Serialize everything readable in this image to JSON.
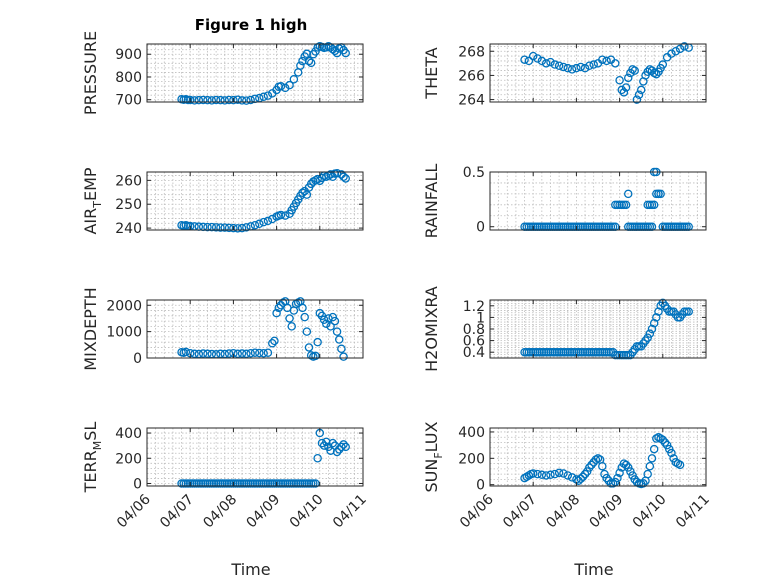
{
  "figure": {
    "title": "Figure 1 high"
  },
  "colors": {
    "marker": "#0072bd",
    "axis": "#262626",
    "grid": "#bdbdbd"
  },
  "chart_data": [
    {
      "type": "scatter",
      "ylabel": "PRESSURE",
      "ylim": [
        690,
        945
      ],
      "yticks": [
        "700",
        "800",
        "900"
      ],
      "ytick_values": [
        700,
        800,
        900
      ],
      "x": [
        0.8,
        0.85,
        0.9,
        0.95,
        1.0,
        1.1,
        1.2,
        1.3,
        1.4,
        1.5,
        1.6,
        1.7,
        1.8,
        1.9,
        2.0,
        2.1,
        2.2,
        2.3,
        2.4,
        2.5,
        2.6,
        2.7,
        2.8,
        2.9,
        3.0,
        3.05,
        3.1,
        3.2,
        3.3,
        3.4,
        3.5,
        3.55,
        3.6,
        3.65,
        3.7,
        3.75,
        3.8,
        3.85,
        3.9,
        3.95,
        4.0,
        4.05,
        4.1,
        4.15,
        4.2,
        4.25,
        4.3,
        4.35,
        4.4,
        4.45,
        4.5,
        4.55,
        4.6
      ],
      "y": [
        702,
        700,
        702,
        699,
        699,
        697,
        698,
        699,
        698,
        697,
        699,
        698,
        697,
        699,
        698,
        700,
        697,
        696,
        699,
        704,
        707,
        713,
        718,
        728,
        743,
        757,
        759,
        752,
        764,
        790,
        820,
        850,
        870,
        890,
        902,
        870,
        862,
        900,
        912,
        930,
        935,
        932,
        928,
        930,
        935,
        930,
        922,
        915,
        905,
        925,
        930,
        918,
        905
      ]
    },
    {
      "type": "scatter",
      "ylabel": "THETA",
      "ylim": [
        263.8,
        268.6
      ],
      "yticks": [
        "264",
        "266",
        "268"
      ],
      "ytick_values": [
        264,
        266,
        268
      ],
      "x": [
        0.8,
        0.9,
        1.0,
        1.1,
        1.2,
        1.3,
        1.4,
        1.5,
        1.6,
        1.7,
        1.8,
        1.9,
        2.0,
        2.1,
        2.2,
        2.3,
        2.4,
        2.5,
        2.6,
        2.7,
        2.8,
        2.9,
        3.0,
        3.05,
        3.1,
        3.15,
        3.2,
        3.25,
        3.3,
        3.35,
        3.4,
        3.45,
        3.5,
        3.55,
        3.6,
        3.65,
        3.7,
        3.75,
        3.8,
        3.85,
        3.9,
        3.95,
        4.0,
        4.1,
        4.2,
        4.3,
        4.4,
        4.5,
        4.6
      ],
      "y": [
        267.3,
        267.2,
        267.6,
        267.4,
        267.2,
        267.0,
        267.1,
        266.9,
        266.8,
        266.7,
        266.6,
        266.5,
        266.6,
        266.7,
        266.6,
        266.8,
        266.9,
        267.0,
        267.3,
        267.2,
        267.3,
        267.0,
        265.6,
        264.8,
        264.6,
        265.0,
        265.8,
        266.2,
        266.5,
        266.4,
        264.0,
        264.4,
        264.8,
        265.5,
        266.0,
        266.3,
        266.5,
        266.4,
        266.2,
        266.1,
        266.3,
        266.6,
        266.9,
        267.5,
        267.8,
        268.0,
        268.2,
        268.4,
        268.3
      ]
    },
    {
      "type": "scatter",
      "ylabel": "AIR_TEMP",
      "ylim": [
        239.2,
        263.5
      ],
      "yticks": [
        "240",
        "250",
        "260"
      ],
      "ytick_values": [
        240,
        250,
        260
      ],
      "x": [
        0.8,
        0.85,
        0.9,
        0.95,
        1.0,
        1.1,
        1.2,
        1.3,
        1.4,
        1.5,
        1.6,
        1.7,
        1.8,
        1.9,
        2.0,
        2.1,
        2.2,
        2.3,
        2.4,
        2.5,
        2.6,
        2.7,
        2.8,
        2.9,
        3.0,
        3.05,
        3.1,
        3.2,
        3.3,
        3.35,
        3.4,
        3.45,
        3.5,
        3.55,
        3.6,
        3.65,
        3.7,
        3.75,
        3.8,
        3.85,
        3.9,
        3.95,
        4.0,
        4.05,
        4.1,
        4.15,
        4.2,
        4.25,
        4.3,
        4.35,
        4.4,
        4.5,
        4.55,
        4.6
      ],
      "y": [
        241.2,
        241.0,
        241.2,
        240.9,
        240.8,
        240.7,
        240.6,
        240.5,
        240.4,
        240.4,
        240.3,
        240.2,
        240.2,
        240.1,
        240.0,
        239.9,
        240.0,
        240.3,
        240.7,
        241.2,
        241.8,
        242.5,
        243.0,
        243.8,
        244.8,
        245.2,
        245.5,
        245.2,
        246.0,
        247.5,
        249.0,
        250.5,
        252.0,
        253.5,
        254.8,
        255.5,
        254.0,
        257.0,
        258.5,
        259.5,
        260.0,
        260.5,
        259.8,
        261.0,
        262.0,
        261.5,
        262.0,
        262.5,
        261.5,
        262.8,
        263.0,
        262.5,
        261.5,
        260.8
      ]
    },
    {
      "type": "scatter",
      "ylabel": "RAINFALL",
      "ylim": [
        -0.03,
        0.5
      ],
      "yticks": [
        "0",
        "0.5"
      ],
      "ytick_values": [
        0,
        0.5
      ],
      "x": [
        0.8,
        0.85,
        0.9,
        0.95,
        1.0,
        1.05,
        1.1,
        1.15,
        1.2,
        1.25,
        1.3,
        1.35,
        1.4,
        1.45,
        1.5,
        1.55,
        1.6,
        1.65,
        1.7,
        1.75,
        1.8,
        1.85,
        1.9,
        1.95,
        2.0,
        2.05,
        2.1,
        2.15,
        2.2,
        2.25,
        2.3,
        2.35,
        2.4,
        2.45,
        2.5,
        2.55,
        2.6,
        2.65,
        2.7,
        2.75,
        2.8,
        2.85,
        2.9,
        3.2,
        3.25,
        3.3,
        3.35,
        3.4,
        3.45,
        3.5,
        3.55,
        3.6,
        3.65,
        3.7,
        3.75,
        4.0,
        4.05,
        4.1,
        4.15,
        4.2,
        4.25,
        4.3,
        4.35,
        4.4,
        4.45,
        4.5,
        4.55,
        4.6,
        2.9,
        2.95,
        3.0,
        3.05,
        3.1,
        3.15,
        3.2,
        3.65,
        3.7,
        3.75,
        3.8,
        3.85,
        3.9,
        3.95,
        3.8,
        3.85,
        3.9
      ],
      "y": [
        0,
        0,
        0,
        0,
        0,
        0,
        0,
        0,
        0,
        0,
        0,
        0,
        0,
        0,
        0,
        0,
        0,
        0,
        0,
        0,
        0,
        0,
        0,
        0,
        0,
        0,
        0,
        0,
        0,
        0,
        0,
        0,
        0,
        0,
        0,
        0,
        0,
        0,
        0,
        0,
        0,
        0,
        0,
        0,
        0,
        0,
        0,
        0,
        0,
        0,
        0,
        0,
        0,
        0,
        0,
        0,
        0,
        0,
        0,
        0,
        0,
        0,
        0,
        0,
        0,
        0,
        0,
        0,
        0.2,
        0.2,
        0.2,
        0.2,
        0.2,
        0.2,
        0.3,
        0.2,
        0.2,
        0.2,
        0.2,
        0.3,
        0.3,
        0.3,
        0.5,
        0.5,
        0.3
      ]
    },
    {
      "type": "scatter",
      "ylabel": "MIXDEPTH",
      "ylim": [
        0,
        2200
      ],
      "yticks": [
        "0",
        "1000",
        "2000"
      ],
      "ytick_values": [
        0,
        1000,
        2000
      ],
      "x": [
        0.8,
        0.85,
        0.9,
        1.0,
        1.1,
        1.2,
        1.3,
        1.4,
        1.5,
        1.6,
        1.7,
        1.8,
        1.9,
        2.0,
        2.1,
        2.2,
        2.3,
        2.4,
        2.5,
        2.6,
        2.7,
        2.8,
        2.9,
        2.95,
        3.0,
        3.05,
        3.1,
        3.15,
        3.2,
        3.25,
        3.3,
        3.35,
        3.4,
        3.45,
        3.5,
        3.55,
        3.6,
        3.65,
        3.7,
        3.75,
        3.8,
        3.85,
        3.9,
        3.95,
        4.0,
        4.05,
        4.1,
        4.15,
        4.2,
        4.25,
        4.3,
        4.35,
        4.4,
        4.45,
        4.5,
        4.55
      ],
      "y": [
        220,
        200,
        230,
        180,
        160,
        150,
        170,
        160,
        150,
        140,
        160,
        150,
        170,
        180,
        160,
        170,
        160,
        180,
        200,
        190,
        180,
        200,
        560,
        650,
        1700,
        1900,
        2000,
        2100,
        2150,
        1900,
        1500,
        1200,
        1800,
        2050,
        2100,
        2150,
        1900,
        1550,
        1000,
        400,
        100,
        50,
        80,
        600,
        1700,
        1600,
        1450,
        1300,
        1500,
        1200,
        1550,
        1400,
        1000,
        700,
        350,
        50
      ]
    },
    {
      "type": "scatter",
      "ylabel": "H2OMIXRA",
      "ylim": [
        0.3,
        1.3
      ],
      "yticks": [
        "0.4",
        "0.6",
        "0.8",
        "1",
        "1.2"
      ],
      "ytick_values": [
        0.4,
        0.6,
        0.8,
        1.0,
        1.2
      ],
      "x": [
        0.8,
        0.85,
        0.9,
        0.95,
        1.0,
        1.05,
        1.1,
        1.15,
        1.2,
        1.25,
        1.3,
        1.35,
        1.4,
        1.45,
        1.5,
        1.55,
        1.6,
        1.65,
        1.7,
        1.75,
        1.8,
        1.85,
        1.9,
        1.95,
        2.0,
        2.05,
        2.1,
        2.15,
        2.2,
        2.25,
        2.3,
        2.35,
        2.4,
        2.45,
        2.5,
        2.55,
        2.6,
        2.65,
        2.7,
        2.75,
        2.8,
        2.85,
        2.9,
        2.95,
        3.0,
        3.05,
        3.1,
        3.15,
        3.2,
        3.25,
        3.3,
        3.35,
        3.4,
        3.45,
        3.5,
        3.55,
        3.6,
        3.65,
        3.7,
        3.75,
        3.8,
        3.85,
        3.9,
        3.95,
        4.0,
        4.05,
        4.1,
        4.15,
        4.2,
        4.25,
        4.3,
        4.35,
        4.4,
        4.45,
        4.5,
        4.55,
        4.6
      ],
      "y": [
        0.4,
        0.4,
        0.4,
        0.4,
        0.4,
        0.4,
        0.4,
        0.4,
        0.4,
        0.4,
        0.4,
        0.4,
        0.4,
        0.4,
        0.4,
        0.4,
        0.4,
        0.4,
        0.4,
        0.4,
        0.4,
        0.4,
        0.4,
        0.4,
        0.4,
        0.4,
        0.4,
        0.4,
        0.4,
        0.4,
        0.4,
        0.4,
        0.4,
        0.4,
        0.4,
        0.4,
        0.4,
        0.4,
        0.4,
        0.4,
        0.4,
        0.4,
        0.35,
        0.35,
        0.35,
        0.35,
        0.35,
        0.35,
        0.35,
        0.35,
        0.4,
        0.45,
        0.5,
        0.5,
        0.5,
        0.55,
        0.6,
        0.65,
        0.72,
        0.8,
        0.9,
        1.0,
        1.1,
        1.2,
        1.25,
        1.2,
        1.15,
        1.1,
        1.1,
        1.1,
        1.05,
        1.0,
        1.0,
        1.05,
        1.1,
        1.1,
        1.1
      ]
    },
    {
      "type": "scatter",
      "ylabel": "TERR_MSL",
      "ylim": [
        -20,
        440
      ],
      "yticks": [
        "0",
        "200",
        "400"
      ],
      "ytick_values": [
        0,
        200,
        400
      ],
      "x": [
        0.8,
        0.85,
        0.9,
        0.95,
        1.0,
        1.05,
        1.1,
        1.15,
        1.2,
        1.25,
        1.3,
        1.35,
        1.4,
        1.45,
        1.5,
        1.55,
        1.6,
        1.65,
        1.7,
        1.75,
        1.8,
        1.85,
        1.9,
        1.95,
        2.0,
        2.05,
        2.1,
        2.15,
        2.2,
        2.25,
        2.3,
        2.35,
        2.4,
        2.45,
        2.5,
        2.55,
        2.6,
        2.65,
        2.7,
        2.75,
        2.8,
        2.85,
        2.9,
        2.95,
        3.0,
        3.05,
        3.1,
        3.15,
        3.2,
        3.25,
        3.3,
        3.35,
        3.4,
        3.45,
        3.5,
        3.55,
        3.6,
        3.65,
        3.7,
        3.75,
        3.8,
        3.85,
        3.9,
        3.95,
        4.0,
        4.05,
        4.1,
        4.15,
        4.2,
        4.25,
        4.3,
        4.35,
        4.4,
        4.45,
        4.5,
        4.55,
        4.6
      ],
      "y": [
        0,
        0,
        0,
        0,
        0,
        0,
        0,
        0,
        0,
        0,
        0,
        0,
        0,
        0,
        0,
        0,
        0,
        0,
        0,
        0,
        0,
        0,
        0,
        0,
        0,
        0,
        0,
        0,
        0,
        0,
        0,
        0,
        0,
        0,
        0,
        0,
        0,
        0,
        0,
        0,
        0,
        0,
        0,
        0,
        0,
        0,
        0,
        0,
        0,
        0,
        0,
        0,
        0,
        0,
        0,
        0,
        0,
        0,
        0,
        0,
        0,
        0,
        0,
        200,
        400,
        320,
        300,
        330,
        290,
        260,
        320,
        300,
        250,
        270,
        290,
        310,
        290
      ]
    },
    {
      "type": "scatter",
      "ylabel": "SUN_FLUX",
      "ylim": [
        -10,
        430
      ],
      "yticks": [
        "0",
        "200",
        "400"
      ],
      "ytick_values": [
        0,
        200,
        400
      ],
      "x": [
        0.8,
        0.85,
        0.9,
        0.95,
        1.0,
        1.1,
        1.2,
        1.3,
        1.4,
        1.5,
        1.6,
        1.7,
        1.8,
        1.9,
        2.0,
        2.05,
        2.1,
        2.15,
        2.2,
        2.25,
        2.3,
        2.35,
        2.4,
        2.45,
        2.5,
        2.55,
        2.6,
        2.65,
        2.7,
        2.75,
        2.8,
        2.85,
        2.9,
        2.95,
        3.0,
        3.05,
        3.1,
        3.15,
        3.2,
        3.25,
        3.3,
        3.35,
        3.4,
        3.45,
        3.5,
        3.55,
        3.6,
        3.65,
        3.7,
        3.75,
        3.8,
        3.85,
        3.9,
        3.95,
        4.0,
        4.05,
        4.1,
        4.15,
        4.2,
        4.25,
        4.3,
        4.35,
        4.4
      ],
      "y": [
        50,
        60,
        70,
        80,
        85,
        80,
        75,
        70,
        75,
        80,
        90,
        85,
        70,
        55,
        40,
        30,
        45,
        60,
        80,
        100,
        130,
        150,
        170,
        190,
        200,
        190,
        140,
        80,
        50,
        30,
        10,
        10,
        20,
        50,
        90,
        130,
        160,
        150,
        130,
        100,
        70,
        40,
        20,
        10,
        5,
        10,
        30,
        80,
        140,
        200,
        270,
        350,
        360,
        350,
        340,
        320,
        300,
        270,
        240,
        200,
        170,
        160,
        150
      ]
    }
  ],
  "x_axis": {
    "xlim": [
      0,
      5
    ],
    "ticks": [
      "04/06",
      "04/07",
      "04/08",
      "04/09",
      "04/10",
      "04/11"
    ],
    "tick_values": [
      0,
      1,
      2,
      3,
      4,
      5
    ],
    "label": "Time"
  }
}
